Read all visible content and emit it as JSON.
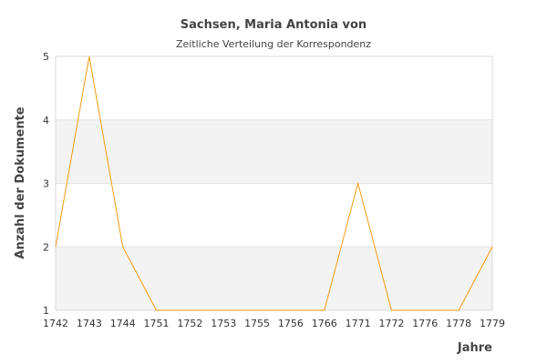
{
  "chart_data": {
    "type": "line",
    "title": "Sachsen, Maria Antonia von",
    "subtitle": "Zeitliche Verteilung der Korrespondenz",
    "xlabel": "Jahre",
    "ylabel": "Anzahl der Dokumente",
    "categories": [
      "1742",
      "1743",
      "1744",
      "1751",
      "1752",
      "1753",
      "1755",
      "1756",
      "1766",
      "1771",
      "1772",
      "1776",
      "1778",
      "1779"
    ],
    "series": [
      {
        "values": [
          2,
          5,
          2,
          1,
          1,
          1,
          1,
          1,
          1,
          3,
          1,
          1,
          1,
          2
        ]
      }
    ],
    "ylim": [
      1,
      5
    ],
    "yticks": [
      1,
      2,
      3,
      4,
      5
    ],
    "grid": true,
    "band_colors": [
      "#ffffff",
      "#f3f3f3"
    ],
    "line_color": "#f39c12"
  }
}
